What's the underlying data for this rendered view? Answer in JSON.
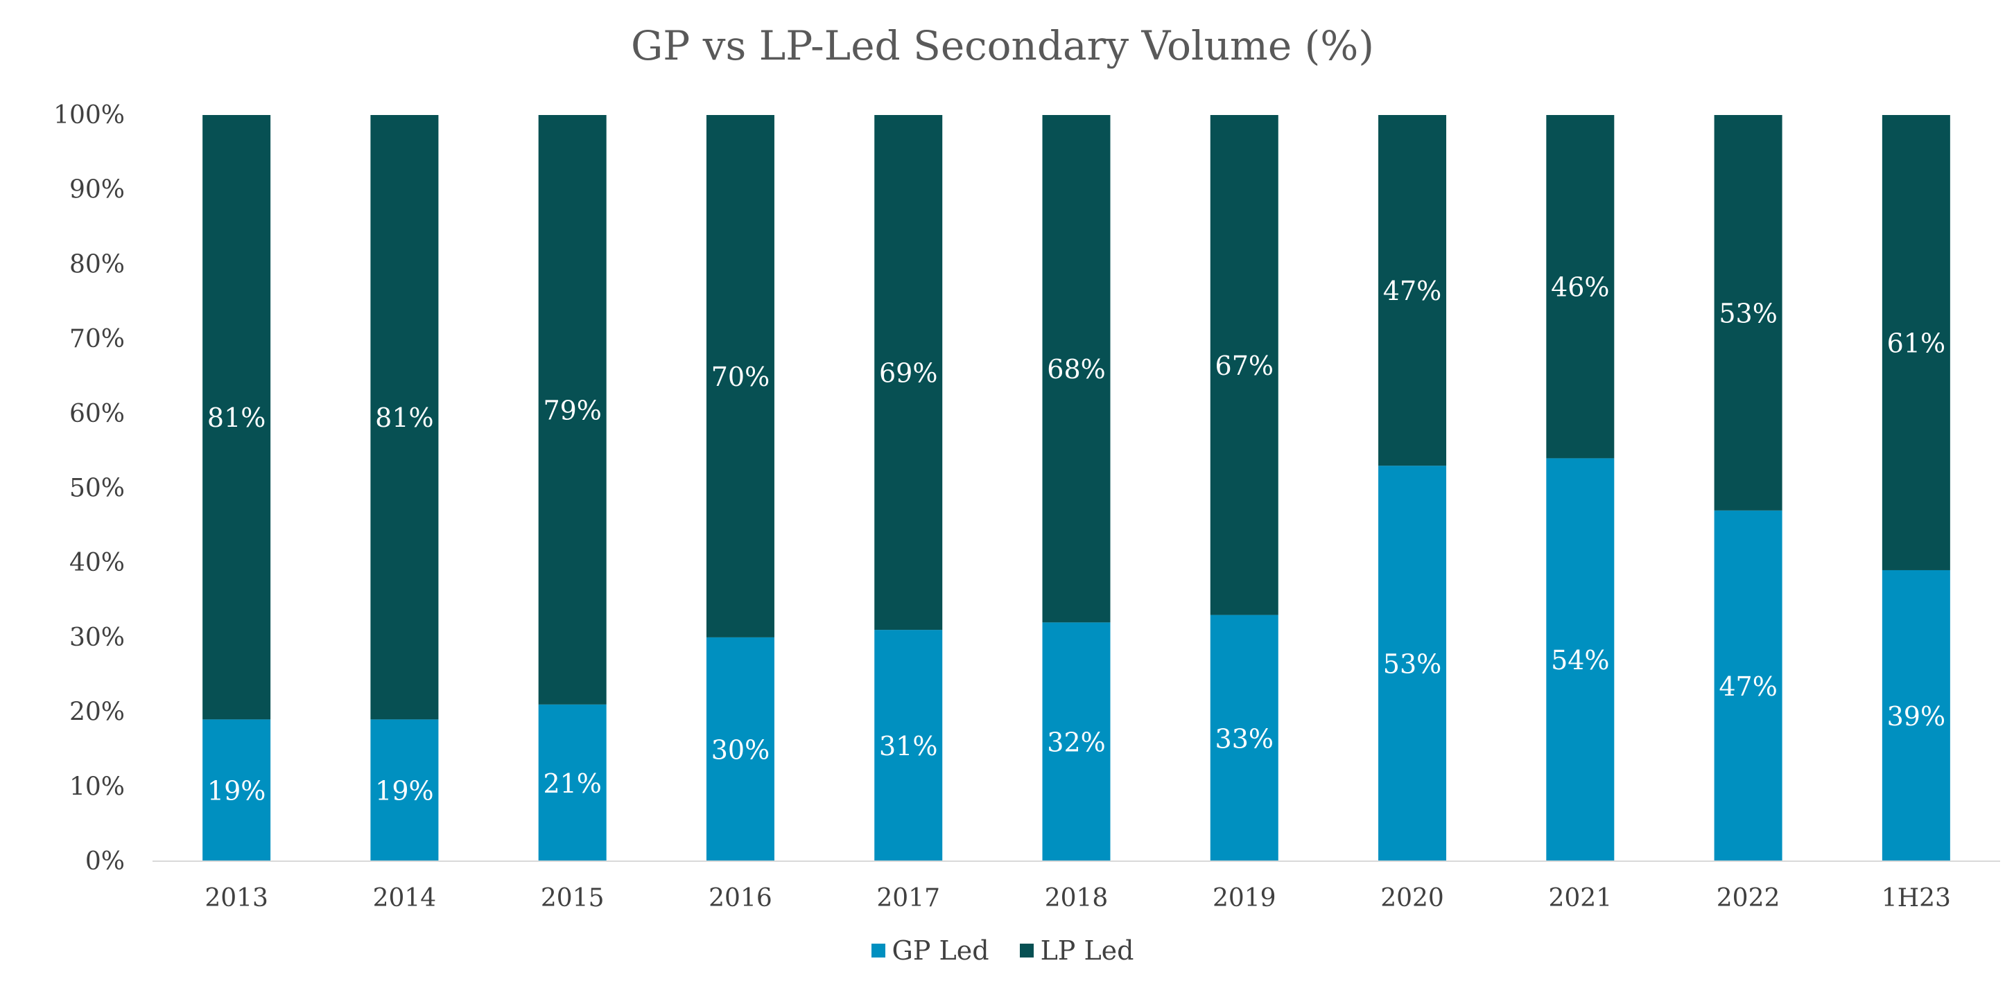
{
  "chart_data": {
    "type": "bar",
    "stacked": true,
    "title": "GP vs LP-Led Secondary Volume (%)",
    "xlabel": "",
    "ylabel": "",
    "categories": [
      "2013",
      "2014",
      "2015",
      "2016",
      "2017",
      "2018",
      "2019",
      "2020",
      "2021",
      "2022",
      "1H23"
    ],
    "series": [
      {
        "name": "GP Led",
        "color": "#0090C0",
        "values": [
          19,
          19,
          21,
          30,
          31,
          32,
          33,
          53,
          54,
          47,
          39
        ],
        "labels": [
          "19%",
          "19%",
          "21%",
          "30%",
          "31%",
          "32%",
          "33%",
          "53%",
          "54%",
          "47%",
          "39%"
        ]
      },
      {
        "name": "LP Led",
        "color": "#075053",
        "values": [
          81,
          81,
          79,
          70,
          69,
          68,
          67,
          47,
          46,
          53,
          61
        ],
        "labels": [
          "81%",
          "81%",
          "79%",
          "70%",
          "69%",
          "68%",
          "67%",
          "47%",
          "46%",
          "53%",
          "61%"
        ]
      }
    ],
    "ylim": [
      0,
      100
    ],
    "yticks": [
      0,
      10,
      20,
      30,
      40,
      50,
      60,
      70,
      80,
      90,
      100
    ],
    "ytick_labels": [
      "0%",
      "10%",
      "20%",
      "30%",
      "40%",
      "50%",
      "60%",
      "70%",
      "80%",
      "90%",
      "100%"
    ],
    "grid": false,
    "legend_position": "bottom"
  }
}
